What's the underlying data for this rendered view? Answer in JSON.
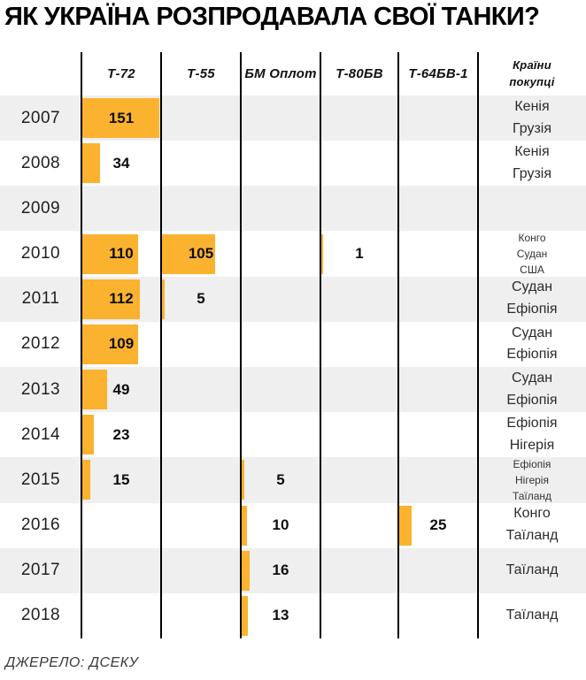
{
  "title": "ЯК УКРАЇНА РОЗПРОДАВАЛА СВОЇ ТАНКИ?",
  "source": "ДЖЕРЕЛО: ДСЕКУ",
  "buyers_header_lines": [
    "Країни",
    "покупці"
  ],
  "columns": [
    {
      "key": "t72",
      "label": "Т-72"
    },
    {
      "key": "t55",
      "label": "Т-55"
    },
    {
      "key": "oplot",
      "label": "БМ Оплот"
    },
    {
      "key": "t80bv",
      "label": "Т-80БВ"
    },
    {
      "key": "t64bv1",
      "label": "Т-64БВ-1"
    }
  ],
  "colors": {
    "bar": "#fbb22e",
    "row_stripe": "#efefef",
    "divider": "#000000"
  },
  "chart_data": {
    "type": "bar",
    "orientation": "horizontal",
    "title": "ЯК УКРАЇНА РОЗПРОДАВАЛА СВОЇ ТАНКИ?",
    "source": "ДЖЕРЕЛО: ДСЕКУ",
    "categories": [
      2007,
      2008,
      2009,
      2010,
      2011,
      2012,
      2013,
      2014,
      2015,
      2016,
      2017,
      2018
    ],
    "series": [
      {
        "key": "t72",
        "name": "Т-72",
        "values": [
          151,
          34,
          null,
          110,
          112,
          109,
          49,
          23,
          15,
          null,
          null,
          null
        ]
      },
      {
        "key": "t55",
        "name": "Т-55",
        "values": [
          null,
          null,
          null,
          105,
          5,
          null,
          null,
          null,
          null,
          null,
          null,
          null
        ]
      },
      {
        "key": "oplot",
        "name": "БМ Оплот",
        "values": [
          null,
          null,
          null,
          null,
          null,
          null,
          null,
          null,
          5,
          10,
          16,
          13
        ]
      },
      {
        "key": "t80bv",
        "name": "Т-80БВ",
        "values": [
          null,
          null,
          null,
          1,
          null,
          null,
          null,
          null,
          null,
          null,
          null,
          null
        ]
      },
      {
        "key": "t64bv1",
        "name": "Т-64БВ-1",
        "values": [
          null,
          null,
          null,
          null,
          null,
          null,
          null,
          null,
          null,
          25,
          null,
          null
        ]
      }
    ],
    "buyers_by_year": [
      [
        "Кенія",
        "Грузія"
      ],
      [
        "Кенія",
        "Грузія"
      ],
      [],
      [
        "Конго",
        "Судан",
        "США"
      ],
      [
        "Судан",
        "Ефіопія"
      ],
      [
        "Судан",
        "Ефіопія"
      ],
      [
        "Судан",
        "Ефіопія"
      ],
      [
        "Ефіопія",
        "Нігерія"
      ],
      [
        "Ефіопія",
        "Нігерія",
        "Таїланд"
      ],
      [
        "Конго",
        "Таїланд"
      ],
      [
        "Таїланд"
      ],
      [
        "Таїланд"
      ]
    ]
  }
}
